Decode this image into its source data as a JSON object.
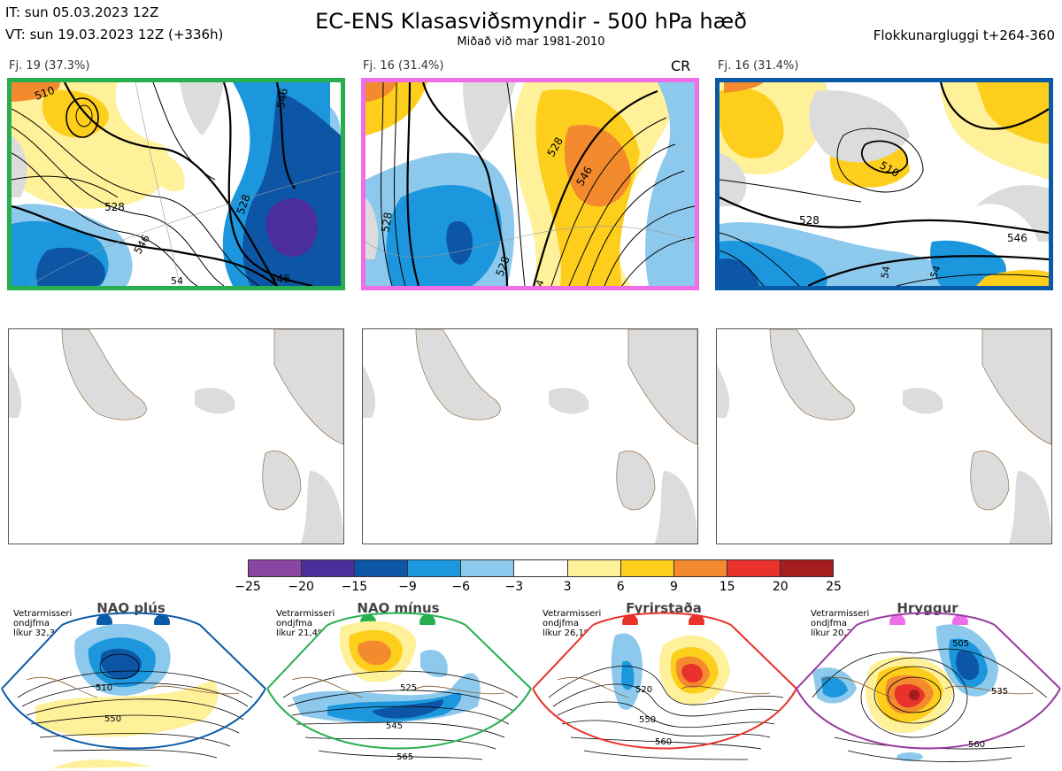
{
  "header": {
    "title": "EC-ENS Klasasviðsmyndir - 500 hPa hæð",
    "subtitle": "Miðað við mar 1981-2010",
    "init_time": "IT: sun 05.03.2023 12Z",
    "valid_time": "VT: sun 19.03.2023 12Z  (+336h)",
    "window": "Flokkunargluggi t+264-360"
  },
  "clusters": [
    {
      "label": "Fj. 19 (37.3%)",
      "tag": "",
      "border_color": "#27ae4f",
      "contour_labels": [
        "510",
        "528",
        "546",
        "528",
        "546",
        "546",
        "54"
      ]
    },
    {
      "label": "Fj. 16 (31.4%)",
      "tag": "CR",
      "border_color": "#ee6ee8",
      "contour_labels": [
        "528",
        "546",
        "528",
        "528",
        "54"
      ]
    },
    {
      "label": "Fj. 16 (31.4%)",
      "tag": "",
      "border_color": "#0a5aa8",
      "contour_labels": [
        "510",
        "528",
        "546",
        "54",
        "54"
      ]
    }
  ],
  "colorbar": {
    "ticks": [
      "−25",
      "−20",
      "−15",
      "−9",
      "−6",
      "−3",
      "3",
      "6",
      "9",
      "15",
      "20",
      "25"
    ],
    "colors": [
      "#8b45a3",
      "#4b2e9c",
      "#0d56a6",
      "#1c97dd",
      "#8cc9ec",
      "#ffffff",
      "#fff09a",
      "#fdce1c",
      "#f38a2e",
      "#e8322b",
      "#a51d1d"
    ]
  },
  "regimes": [
    {
      "name": "NAO plús",
      "note": [
        "Vetrarmisseri",
        "ondjfma",
        "líkur 32,3%"
      ],
      "dot_color": "#0a5aa8",
      "frame_color": "#0a5aa8",
      "contour_labels": [
        "510",
        "550"
      ]
    },
    {
      "name": "NAO mínus",
      "note": [
        "Vetrarmisseri",
        "ondjfma",
        "líkur 21,4%"
      ],
      "dot_color": "#27ae4f",
      "frame_color": "#27ae4f",
      "contour_labels": [
        "525",
        "545",
        "565"
      ]
    },
    {
      "name": "Fyrirstaða",
      "note": [
        "Vetrarmisseri",
        "ondjfma",
        "líkur 26,1%"
      ],
      "dot_color": "#e8322b",
      "frame_color": "#e8322b",
      "contour_labels": [
        "520",
        "550",
        "560"
      ]
    },
    {
      "name": "Hryggur",
      "note": [
        "Vetrarmisseri",
        "ondjfma",
        "líkur 20,2%"
      ],
      "dot_color": "#ee6ee8",
      "frame_color": "#9a3aa0",
      "contour_labels": [
        "505",
        "535",
        "560"
      ]
    }
  ]
}
